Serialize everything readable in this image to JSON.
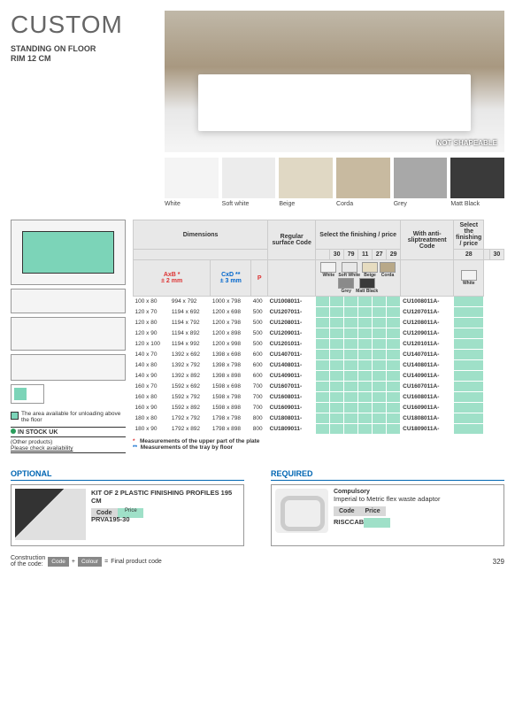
{
  "title": "CUSTOM",
  "subtitle1": "STANDING ON FLOOR",
  "subtitle2": "RIM 12 CM",
  "not_shapeable": "NOT SHAPEABLE",
  "swatches": [
    {
      "label": "White",
      "color": "#f4f4f4"
    },
    {
      "label": "Soft white",
      "color": "#ececec"
    },
    {
      "label": "Beige",
      "color": "#e0d8c4"
    },
    {
      "label": "Corda",
      "color": "#c8baa0"
    },
    {
      "label": "Grey",
      "color": "#a8a8a8"
    },
    {
      "label": "Matt Black",
      "color": "#3a3a3a"
    }
  ],
  "headers": {
    "dimensions": "Dimensions",
    "regular": "Regular surface Code",
    "select_fin": "Select the finishing / price",
    "anti": "With anti-sliptreatment Code",
    "select_fin2": "Select the finishing / price",
    "ab": "AxB *",
    "ab_sub": "± 2 mm",
    "cd": "CxD **",
    "cd_sub": "± 3 mm",
    "p": "P"
  },
  "color_codes": [
    {
      "n": "30",
      "l": "White",
      "c": "#f2f2f2"
    },
    {
      "n": "79",
      "l": "Soft White",
      "c": "#e8e8e8"
    },
    {
      "n": "11",
      "l": "Beige",
      "c": "#e6dcc0"
    },
    {
      "n": "27",
      "l": "Corda",
      "c": "#b8a888"
    },
    {
      "n": "29",
      "l": "Grey",
      "c": "#8a8a8a"
    },
    {
      "n": "28",
      "l": "Matt Black",
      "c": "#3a3a3a"
    }
  ],
  "color_codes2": [
    {
      "n": "30",
      "l": "White",
      "c": "#f2f2f2"
    }
  ],
  "rows": [
    {
      "d": "100 x 80",
      "cd": "994 x 792",
      "ef": "1000 x 798",
      "p": "400",
      "c": "CU1008011-",
      "a": "CU1008011A-"
    },
    {
      "d": "120 x 70",
      "cd": "1194 x 692",
      "ef": "1200 x 698",
      "p": "500",
      "c": "CU1207011-",
      "a": "CU1207011A-"
    },
    {
      "d": "120 x 80",
      "cd": "1194 x 792",
      "ef": "1200 x 798",
      "p": "500",
      "c": "CU1208011-",
      "a": "CU1208011A-"
    },
    {
      "d": "120 x 90",
      "cd": "1194 x 892",
      "ef": "1200 x 898",
      "p": "500",
      "c": "CU1209011-",
      "a": "CU1209011A-"
    },
    {
      "d": "120 x 100",
      "cd": "1194 x 992",
      "ef": "1200 x 998",
      "p": "500",
      "c": "CU1201011-",
      "a": "CU1201011A-"
    },
    {
      "d": "140 x 70",
      "cd": "1392 x 692",
      "ef": "1398 x 698",
      "p": "600",
      "c": "CU1407011-",
      "a": "CU1407011A-"
    },
    {
      "d": "140 x 80",
      "cd": "1392 x 792",
      "ef": "1398 x 798",
      "p": "600",
      "c": "CU1408011-",
      "a": "CU1408011A-"
    },
    {
      "d": "140 x 90",
      "cd": "1392 x 892",
      "ef": "1398 x 898",
      "p": "600",
      "c": "CU1409011-",
      "a": "CU1409011A-"
    },
    {
      "d": "160 x 70",
      "cd": "1592 x 692",
      "ef": "1598 x 698",
      "p": "700",
      "c": "CU1607011-",
      "a": "CU1607011A-"
    },
    {
      "d": "160 x 80",
      "cd": "1592 x 792",
      "ef": "1598 x 798",
      "p": "700",
      "c": "CU1608011-",
      "a": "CU1608011A-"
    },
    {
      "d": "160 x 90",
      "cd": "1592 x 892",
      "ef": "1598 x 898",
      "p": "700",
      "c": "CU1609011-",
      "a": "CU1609011A-"
    },
    {
      "d": "180 x 80",
      "cd": "1792 x 792",
      "ef": "1798 x 798",
      "p": "800",
      "c": "CU1808011-",
      "a": "CU1808011A-"
    },
    {
      "d": "180 x 90",
      "cd": "1792 x 892",
      "ef": "1798 x 898",
      "p": "800",
      "c": "CU1809011-",
      "a": "CU1809011A-"
    }
  ],
  "diag_note": "The area available for unloading above the floor",
  "stock": "IN STOCK UK",
  "other1": "(Other products)",
  "other2": "Please check availability",
  "foot1": "Measurements of the upper part of the plate",
  "foot2": "Measurements of the tray by floor",
  "optional": {
    "heading": "OPTIONAL",
    "title": "KIT OF 2 PLASTIC FINISHING PROFILES 195 CM",
    "code_label": "Code",
    "price_label": "Price",
    "code": "PRVA195-30"
  },
  "required": {
    "heading": "REQUIRED",
    "sub": "Compulsory",
    "title": "Imperial to Metric flex waste adaptor",
    "code_label": "Code",
    "price_label": "Price",
    "code": "RISCCAB"
  },
  "construct": {
    "l1": "Construction",
    "l2": "of the code:",
    "code": "Code",
    "plus": "+",
    "colour": "Colour",
    "eq": "=",
    "final": "Final product code"
  },
  "page": "329"
}
